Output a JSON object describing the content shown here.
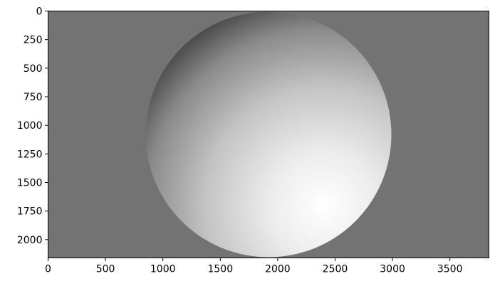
{
  "chart_data": {
    "type": "heatmap",
    "title": "",
    "xlabel": "",
    "ylabel": "",
    "xlim": [
      0,
      3840
    ],
    "ylim": [
      2160,
      0
    ],
    "y_axis_inverted": true,
    "x_ticks": [
      0,
      500,
      1000,
      1500,
      2000,
      2500,
      3000,
      3500
    ],
    "x_tick_labels": [
      "0",
      "500",
      "1000",
      "1500",
      "2000",
      "2500",
      "3000",
      "3500"
    ],
    "y_ticks": [
      0,
      250,
      500,
      750,
      1000,
      1250,
      1500,
      1750,
      2000
    ],
    "y_tick_labels": [
      "0",
      "250",
      "500",
      "750",
      "1000",
      "1250",
      "1500",
      "1750",
      "2000"
    ],
    "grid": false,
    "legend": "none",
    "image": {
      "content": "shaded sphere on flat background",
      "colormap": "grayscale",
      "background_color": "#737373",
      "sphere_center": [
        1920,
        1080
      ],
      "sphere_radius": 1070,
      "brightest_region_approx": [
        2400,
        1700
      ],
      "darkest_region_approx": [
        1100,
        350
      ],
      "highlight_color": "#ffffff",
      "shadow_color": "#111111"
    }
  }
}
